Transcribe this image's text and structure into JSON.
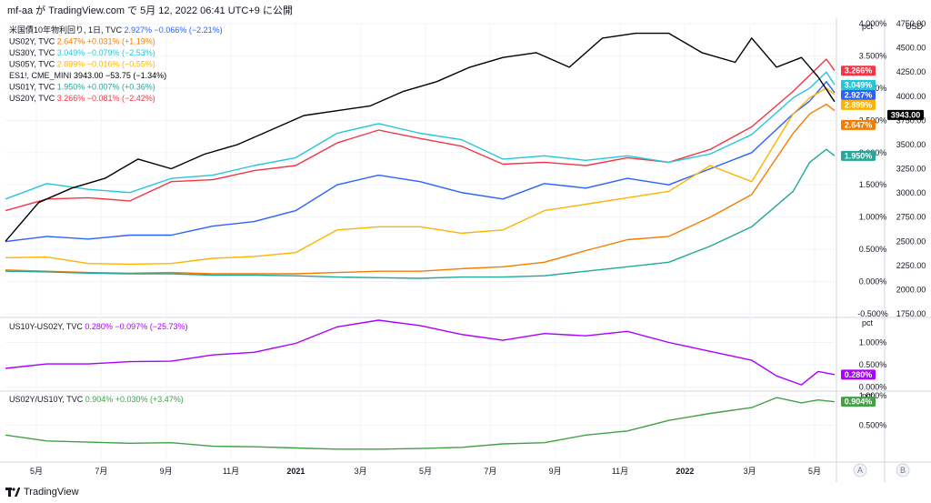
{
  "header": {
    "caption": "mf-aa が TradingView.com で 5月 12, 2022 06:41 UTC+9 に公開"
  },
  "footer": {
    "brand": "TradingView",
    "logo_icon": "tradingview-logo-icon"
  },
  "colors": {
    "black": "#000000",
    "red": "#f23645",
    "cyan": "#26c6da",
    "blue": "#2962ff",
    "orange": "#f57c00",
    "yellow": "#ffb300",
    "teal": "#26a69a",
    "purple": "#aa00ff",
    "green": "#43a047",
    "grid": "#f0f3fa",
    "axisText": "#131722"
  },
  "time_axis": {
    "labels": [
      "5月",
      "7月",
      "9月",
      "11月",
      "2021",
      "3月",
      "5月",
      "7月",
      "9月",
      "11月",
      "2022",
      "3月",
      "5月"
    ],
    "bold": [
      "2021",
      "2022"
    ],
    "buttons": [
      "A",
      "B"
    ]
  },
  "chart_data": [
    {
      "type": "line",
      "pane": "main",
      "x_range": [
        "2020-04",
        "2022-05"
      ],
      "right_axis_unit": "pct",
      "right_axis_ticks": [
        "4.000%",
        "3.500%",
        "3.000%",
        "2.500%",
        "2.000%",
        "1.500%",
        "1.000%",
        "0.500%",
        "0.000%",
        "-0.500%"
      ],
      "ylim": [
        -0.5,
        4.0
      ],
      "usd_axis_unit": "USD",
      "usd_axis_ticks": [
        "4750.00",
        "4500.00",
        "4250.00",
        "4000.00",
        "3750.00",
        "3500.00",
        "3250.00",
        "3000.00",
        "2750.00",
        "2500.00",
        "2250.00",
        "2000.00",
        "1750.00"
      ],
      "usd_lim": [
        1750,
        4750
      ],
      "legend": [
        {
          "text": "米国債10年物利回り, 1日, TVC",
          "values": "2.927%  −0.066% (−2.21%)",
          "color": "blue"
        },
        {
          "text": "US02Y, TVC",
          "values": "2.647%  +0.031% (+1.19%)",
          "color": "orange"
        },
        {
          "text": "US30Y, TVC",
          "values": "3.049%  −0.079% (−2.53%)",
          "color": "cyan"
        },
        {
          "text": "US05Y, TVC",
          "values": "2.899%  −0.016% (−0.55%)",
          "color": "yellow"
        },
        {
          "text": "ES1!, CME_MINI",
          "values": "3943.00  −53.75 (−1.34%)",
          "color": "black"
        },
        {
          "text": "US01Y, TVC",
          "values": "1.950%  +0.007% (+0.36%)",
          "color": "teal"
        },
        {
          "text": "US20Y, TVC",
          "values": "3.266%  −0.081% (−2.42%)",
          "color": "red"
        }
      ],
      "series": [
        {
          "name": "US20Y",
          "color": "red",
          "axis": "pct",
          "last": "3.266%",
          "x": [
            0,
            0.05,
            0.1,
            0.15,
            0.2,
            0.25,
            0.3,
            0.35,
            0.4,
            0.45,
            0.5,
            0.55,
            0.6,
            0.65,
            0.7,
            0.75,
            0.8,
            0.85,
            0.9,
            0.95,
            0.97,
            0.99,
            1
          ],
          "values": [
            1.1,
            1.28,
            1.3,
            1.25,
            1.55,
            1.58,
            1.72,
            1.8,
            2.15,
            2.35,
            2.22,
            2.1,
            1.82,
            1.85,
            1.8,
            1.92,
            1.85,
            2.05,
            2.4,
            2.95,
            3.2,
            3.45,
            3.27
          ]
        },
        {
          "name": "US30Y",
          "color": "cyan",
          "axis": "pct",
          "last": "3.049%",
          "x": [
            0,
            0.05,
            0.1,
            0.15,
            0.2,
            0.25,
            0.3,
            0.35,
            0.4,
            0.45,
            0.5,
            0.55,
            0.6,
            0.65,
            0.7,
            0.75,
            0.8,
            0.85,
            0.9,
            0.95,
            0.97,
            0.99,
            1
          ],
          "values": [
            1.28,
            1.52,
            1.43,
            1.38,
            1.6,
            1.65,
            1.8,
            1.92,
            2.3,
            2.45,
            2.3,
            2.2,
            1.9,
            1.95,
            1.88,
            1.95,
            1.85,
            1.98,
            2.28,
            2.85,
            3.0,
            3.25,
            3.05
          ]
        },
        {
          "name": "US10Y",
          "color": "blue",
          "axis": "pct",
          "last": "2.927%",
          "x": [
            0,
            0.05,
            0.1,
            0.15,
            0.2,
            0.25,
            0.3,
            0.35,
            0.4,
            0.45,
            0.5,
            0.55,
            0.6,
            0.65,
            0.7,
            0.75,
            0.8,
            0.85,
            0.9,
            0.95,
            0.97,
            0.99,
            1
          ],
          "values": [
            0.62,
            0.7,
            0.66,
            0.72,
            0.72,
            0.86,
            0.93,
            1.1,
            1.5,
            1.65,
            1.55,
            1.38,
            1.28,
            1.52,
            1.45,
            1.6,
            1.5,
            1.75,
            2.0,
            2.6,
            2.8,
            3.1,
            2.93
          ]
        },
        {
          "name": "US05Y",
          "color": "yellow",
          "axis": "pct",
          "last": "2.899%",
          "x": [
            0,
            0.05,
            0.1,
            0.15,
            0.2,
            0.25,
            0.3,
            0.35,
            0.4,
            0.45,
            0.5,
            0.55,
            0.6,
            0.65,
            0.7,
            0.75,
            0.8,
            0.85,
            0.9,
            0.95,
            0.97,
            0.99,
            1
          ],
          "values": [
            0.37,
            0.38,
            0.28,
            0.27,
            0.28,
            0.36,
            0.39,
            0.45,
            0.8,
            0.85,
            0.85,
            0.75,
            0.8,
            1.1,
            1.2,
            1.3,
            1.4,
            1.8,
            1.55,
            2.6,
            2.85,
            3.0,
            2.9
          ]
        },
        {
          "name": "US02Y",
          "color": "orange",
          "axis": "pct",
          "last": "2.647%",
          "x": [
            0,
            0.05,
            0.1,
            0.15,
            0.2,
            0.25,
            0.3,
            0.35,
            0.4,
            0.45,
            0.5,
            0.55,
            0.6,
            0.65,
            0.7,
            0.75,
            0.8,
            0.85,
            0.9,
            0.95,
            0.97,
            0.99,
            1
          ],
          "values": [
            0.18,
            0.16,
            0.14,
            0.13,
            0.14,
            0.12,
            0.12,
            0.12,
            0.14,
            0.16,
            0.16,
            0.2,
            0.23,
            0.3,
            0.48,
            0.65,
            0.7,
            1.0,
            1.35,
            2.3,
            2.6,
            2.75,
            2.65
          ]
        },
        {
          "name": "US01Y",
          "color": "teal",
          "axis": "pct",
          "last": "1.950%",
          "x": [
            0,
            0.05,
            0.1,
            0.15,
            0.2,
            0.25,
            0.3,
            0.35,
            0.4,
            0.45,
            0.5,
            0.55,
            0.6,
            0.65,
            0.7,
            0.75,
            0.8,
            0.85,
            0.9,
            0.95,
            0.97,
            0.99,
            1
          ],
          "values": [
            0.16,
            0.15,
            0.13,
            0.12,
            0.12,
            0.1,
            0.1,
            0.09,
            0.07,
            0.06,
            0.05,
            0.07,
            0.07,
            0.09,
            0.16,
            0.23,
            0.3,
            0.55,
            0.85,
            1.4,
            1.85,
            2.05,
            1.95
          ]
        },
        {
          "name": "ES1!",
          "color": "black",
          "axis": "usd",
          "last": "3943.00",
          "x": [
            0,
            0.04,
            0.08,
            0.12,
            0.16,
            0.2,
            0.24,
            0.28,
            0.32,
            0.36,
            0.4,
            0.44,
            0.48,
            0.52,
            0.56,
            0.6,
            0.64,
            0.68,
            0.72,
            0.76,
            0.8,
            0.84,
            0.88,
            0.9,
            0.93,
            0.96,
            0.98,
            1
          ],
          "values": [
            2500,
            2900,
            3050,
            3150,
            3350,
            3250,
            3400,
            3500,
            3650,
            3800,
            3850,
            3900,
            4050,
            4150,
            4300,
            4400,
            4450,
            4300,
            4600,
            4650,
            4650,
            4450,
            4350,
            4600,
            4300,
            4400,
            4200,
            3943
          ]
        }
      ]
    },
    {
      "type": "line",
      "pane": "spread_10y_2y",
      "x_range": [
        "2020-04",
        "2022-05"
      ],
      "right_axis_unit": "pct",
      "right_axis_ticks": [
        "1.000%",
        "0.500%",
        "0.000%"
      ],
      "ylim": [
        -0.05,
        1.5
      ],
      "legend": [
        {
          "text": "US10Y-US02Y, TVC",
          "values": "0.280%  −0.097% (−25.73%)",
          "color": "purple"
        }
      ],
      "series": [
        {
          "name": "US10Y-US02Y",
          "color": "purple",
          "axis": "pct",
          "last": "0.280%",
          "x": [
            0,
            0.05,
            0.1,
            0.15,
            0.2,
            0.25,
            0.3,
            0.35,
            0.4,
            0.45,
            0.5,
            0.55,
            0.6,
            0.65,
            0.7,
            0.75,
            0.8,
            0.85,
            0.9,
            0.93,
            0.96,
            0.98,
            1
          ],
          "values": [
            0.42,
            0.52,
            0.52,
            0.57,
            0.58,
            0.72,
            0.78,
            0.98,
            1.35,
            1.5,
            1.38,
            1.18,
            1.05,
            1.2,
            1.15,
            1.25,
            1.0,
            0.8,
            0.6,
            0.25,
            0.05,
            0.35,
            0.28
          ]
        }
      ]
    },
    {
      "type": "line",
      "pane": "spread_2y_10y",
      "x_range": [
        "2020-04",
        "2022-05"
      ],
      "right_axis_unit": "pct",
      "right_axis_ticks": [
        "1.000%",
        "0.500%"
      ],
      "ylim": [
        -0.1,
        1.05
      ],
      "legend": [
        {
          "text": "US02Y/US10Y, TVC",
          "values": "0.904%  +0.030% (+3.47%)",
          "color": "green"
        }
      ],
      "series": [
        {
          "name": "US02Y/US10Y",
          "color": "green",
          "axis": "pct",
          "last": "0.904%",
          "x": [
            0,
            0.05,
            0.1,
            0.15,
            0.2,
            0.25,
            0.3,
            0.35,
            0.4,
            0.45,
            0.5,
            0.55,
            0.6,
            0.65,
            0.7,
            0.75,
            0.8,
            0.85,
            0.9,
            0.93,
            0.96,
            0.98,
            1
          ],
          "values": [
            0.33,
            0.23,
            0.21,
            0.19,
            0.2,
            0.14,
            0.13,
            0.11,
            0.09,
            0.09,
            0.1,
            0.12,
            0.18,
            0.2,
            0.33,
            0.4,
            0.58,
            0.7,
            0.8,
            0.97,
            0.88,
            0.93,
            0.9
          ]
        }
      ]
    }
  ]
}
